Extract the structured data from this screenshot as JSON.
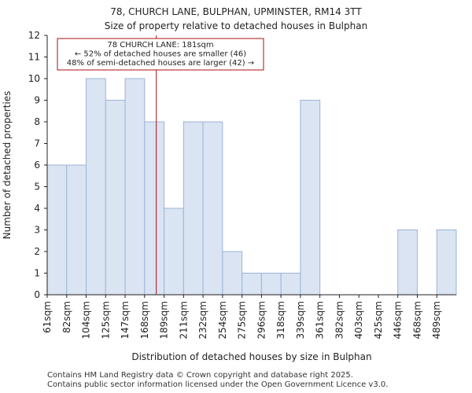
{
  "chart_data": {
    "type": "bar",
    "title": "78, CHURCH LANE, BULPHAN, UPMINSTER, RM14 3TT",
    "subtitle": "Size of property relative to detached houses in Bulphan",
    "xlabel": "Distribution of detached houses by size in Bulphan",
    "ylabel": "Number of detached properties",
    "categories": [
      "61sqm",
      "82sqm",
      "104sqm",
      "125sqm",
      "147sqm",
      "168sqm",
      "189sqm",
      "211sqm",
      "232sqm",
      "254sqm",
      "275sqm",
      "296sqm",
      "318sqm",
      "339sqm",
      "361sqm",
      "382sqm",
      "403sqm",
      "425sqm",
      "446sqm",
      "468sqm",
      "489sqm"
    ],
    "values": [
      6,
      6,
      10,
      9,
      10,
      8,
      4,
      8,
      8,
      2,
      1,
      1,
      1,
      9,
      0,
      0,
      0,
      0,
      3,
      0,
      3
    ],
    "ylim": [
      0,
      12
    ],
    "yticks": [
      0,
      1,
      2,
      3,
      4,
      5,
      6,
      7,
      8,
      9,
      10,
      11,
      12
    ],
    "marker": {
      "value_index": 5.6,
      "color": "#aa1111"
    },
    "annotation": {
      "lines": [
        "78 CHURCH LANE: 181sqm",
        "← 52% of detached houses are smaller (46)",
        "48% of semi-detached houses are larger (42) →"
      ],
      "border_color": "#aa1111"
    },
    "bar_fill": "#dae4f3",
    "bar_stroke": "#9db4d6",
    "grid": false
  },
  "footer": {
    "line1": "Contains HM Land Registry data © Crown copyright and database right 2025.",
    "line2": "Contains public sector information licensed under the Open Government Licence v3.0."
  }
}
